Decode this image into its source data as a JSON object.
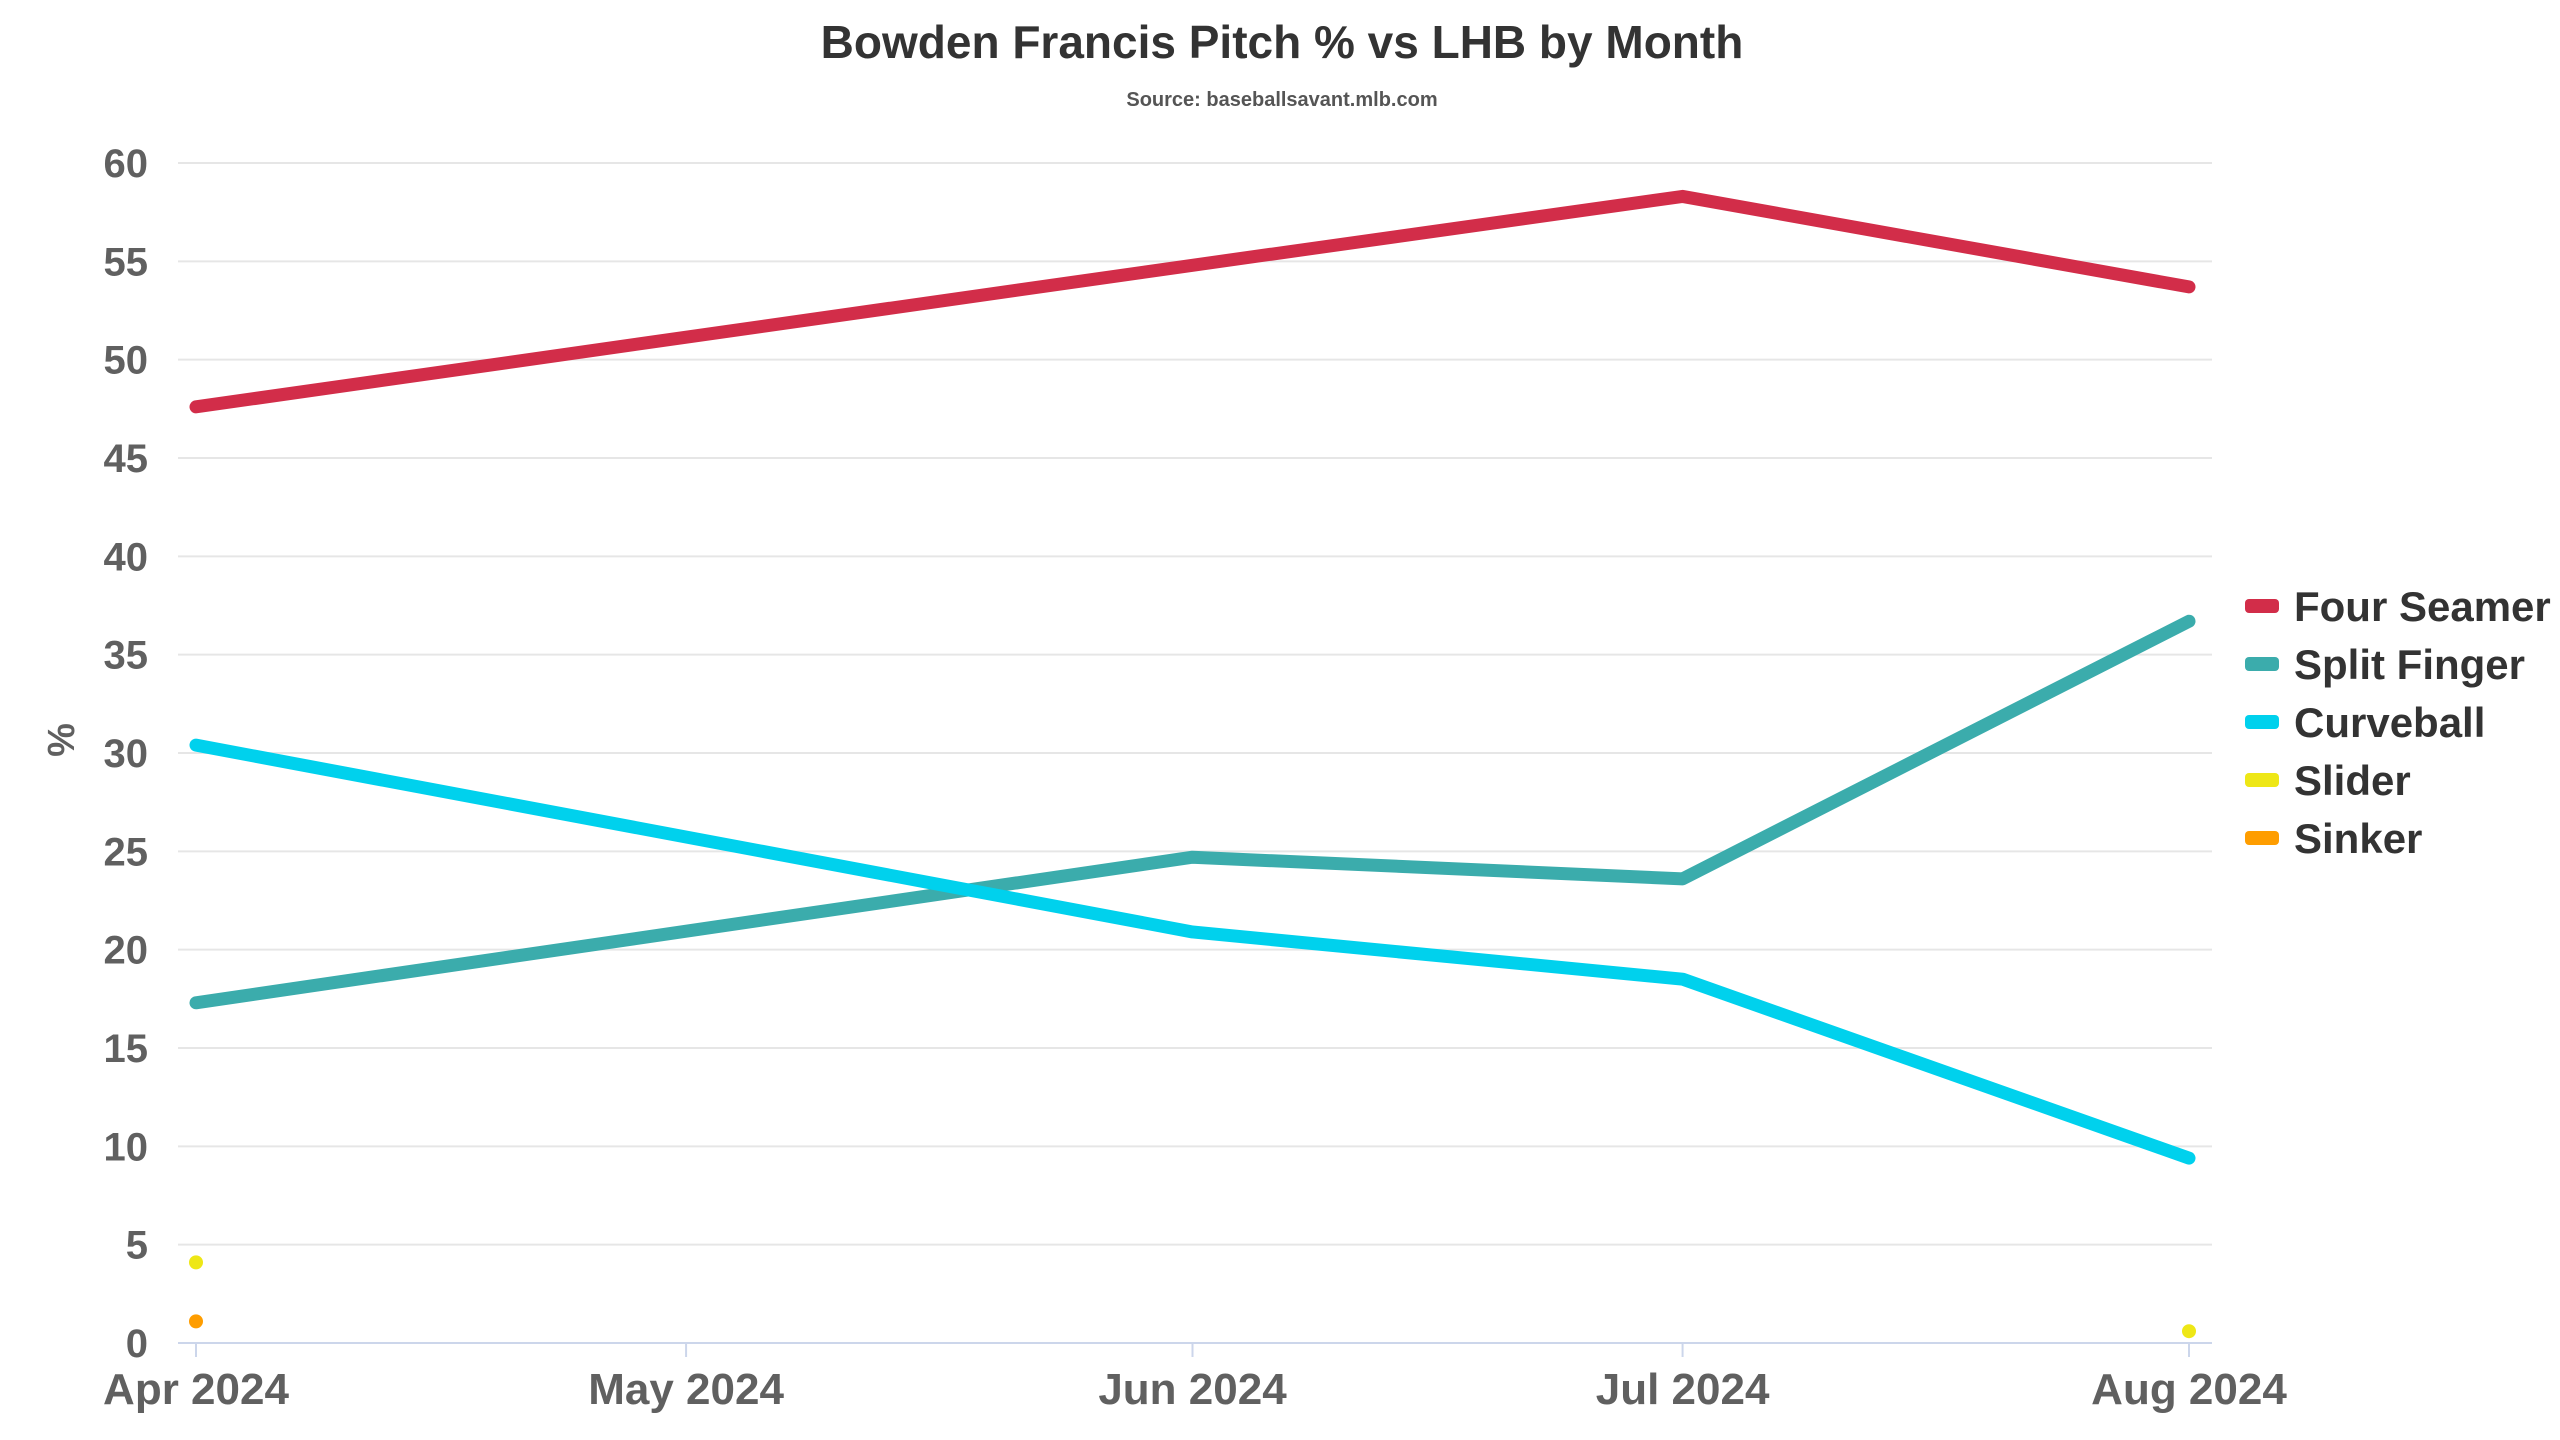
{
  "chart_data": {
    "type": "line",
    "title": "Bowden Francis Pitch % vs LHB by Month",
    "subtitle": "Source: baseballsavant.mlb.com",
    "ylabel": "%",
    "xlabel": "",
    "x": [
      "2024-04-01",
      "2024-05-01",
      "2024-06-01",
      "2024-07-01",
      "2024-08-01"
    ],
    "x_tick_labels": [
      "Apr 2024",
      "May 2024",
      "Jun 2024",
      "Jul 2024",
      "Aug 2024"
    ],
    "ylim": [
      0,
      60
    ],
    "yticks": [
      0,
      5,
      10,
      15,
      20,
      25,
      30,
      35,
      40,
      45,
      50,
      55,
      60
    ],
    "grid": true,
    "legend_position": "right",
    "series": [
      {
        "name": "Four Seamer",
        "color": "#d22d49",
        "points": [
          {
            "x": "2024-04-01",
            "y": 47.6
          },
          {
            "x": "2024-06-01",
            "y": 54.8
          },
          {
            "x": "2024-07-01",
            "y": 58.3
          },
          {
            "x": "2024-08-01",
            "y": 53.7
          }
        ]
      },
      {
        "name": "Split Finger",
        "color": "#3bacac",
        "points": [
          {
            "x": "2024-04-01",
            "y": 17.3
          },
          {
            "x": "2024-06-01",
            "y": 24.7
          },
          {
            "x": "2024-07-01",
            "y": 23.6
          },
          {
            "x": "2024-08-01",
            "y": 36.7
          }
        ]
      },
      {
        "name": "Curveball",
        "color": "#00d1ed",
        "points": [
          {
            "x": "2024-04-01",
            "y": 30.4
          },
          {
            "x": "2024-06-01",
            "y": 20.9
          },
          {
            "x": "2024-07-01",
            "y": 18.5
          },
          {
            "x": "2024-08-01",
            "y": 9.4
          }
        ]
      },
      {
        "name": "Slider",
        "color": "#eee716",
        "points": [
          {
            "x": "2024-04-01",
            "y": 4.1
          },
          {
            "x": "2024-08-01",
            "y": 0.6
          }
        ]
      },
      {
        "name": "Sinker",
        "color": "#fe9d00",
        "points": [
          {
            "x": "2024-04-01",
            "y": 1.1
          }
        ]
      }
    ]
  }
}
